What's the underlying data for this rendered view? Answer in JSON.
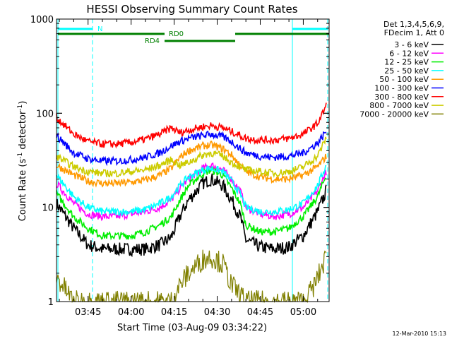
{
  "chart_data": {
    "type": "line",
    "title": "HESSI Observing Summary Count Rates",
    "xlabel": "Start Time (03-Aug-09 03:34:22)",
    "ylabel": "Count Rate (s",
    "ylabel_sup": "-1",
    "ylabel_tail": " detector",
    "ylabel_sup2": "-1",
    "ylabel_close": ")",
    "yscale": "log",
    "ylim": [
      1,
      1000
    ],
    "xlim": [
      "03:34",
      "05:09"
    ],
    "x_ticks": [
      "03:45",
      "04:00",
      "04:15",
      "04:30",
      "04:45",
      "05:00"
    ],
    "y_ticks": [
      "1",
      "10",
      "100",
      "1000"
    ],
    "timestamp": "12-Mar-2010 15:13",
    "legend_placement": "right",
    "legend_header": [
      "Det 1,3,4,5,6,9,",
      "FDecim 1, Att 0"
    ],
    "series": [
      {
        "name": "3 - 6 keV",
        "color": "#000000",
        "x": [
          "03:34",
          "03:40",
          "03:45",
          "03:50",
          "03:55",
          "04:00",
          "04:05",
          "04:10",
          "04:14",
          "04:17",
          "04:20",
          "04:25",
          "04:28",
          "04:32",
          "04:35",
          "04:38",
          "04:40",
          "04:45",
          "04:50",
          "04:55",
          "05:00",
          "05:05",
          "05:08"
        ],
        "y": [
          11,
          6,
          4,
          3.6,
          3.6,
          3.6,
          3.6,
          4,
          4.8,
          8,
          12,
          18,
          20,
          17,
          12,
          8,
          4.5,
          3.8,
          3.6,
          3.8,
          5,
          9,
          15
        ]
      },
      {
        "name": "6 - 12 keV",
        "color": "#ff00ff",
        "x": [
          "03:34",
          "03:40",
          "03:45",
          "03:50",
          "03:55",
          "04:00",
          "04:05",
          "04:10",
          "04:14",
          "04:17",
          "04:20",
          "04:25",
          "04:28",
          "04:32",
          "04:35",
          "04:38",
          "04:40",
          "04:45",
          "04:50",
          "04:55",
          "05:00",
          "05:05",
          "05:08"
        ],
        "y": [
          18,
          11,
          8.5,
          8,
          8,
          8.5,
          9,
          10,
          12,
          16,
          20,
          26,
          28,
          25,
          20,
          15,
          10,
          8.5,
          8,
          8.5,
          10,
          15,
          24
        ]
      },
      {
        "name": "12 - 25 keV",
        "color": "#00ee00",
        "x": [
          "03:34",
          "03:40",
          "03:45",
          "03:50",
          "03:55",
          "04:00",
          "04:05",
          "04:10",
          "04:14",
          "04:17",
          "04:20",
          "04:25",
          "04:28",
          "04:32",
          "04:35",
          "04:38",
          "04:40",
          "04:45",
          "04:50",
          "04:55",
          "05:00",
          "05:05",
          "05:08"
        ],
        "y": [
          14,
          8,
          6,
          5,
          5,
          5,
          5.5,
          6.5,
          8,
          12,
          17,
          23,
          25,
          22,
          16,
          11,
          6.5,
          5.5,
          5.5,
          6,
          8,
          13,
          22
        ]
      },
      {
        "name": "25 - 50 keV",
        "color": "#00ffff",
        "x": [
          "03:34",
          "03:40",
          "03:45",
          "03:50",
          "03:55",
          "04:00",
          "04:05",
          "04:10",
          "04:14",
          "04:17",
          "04:20",
          "04:25",
          "04:28",
          "04:32",
          "04:35",
          "04:38",
          "04:40",
          "04:45",
          "04:50",
          "04:55",
          "05:00",
          "05:05",
          "05:08"
        ],
        "y": [
          22,
          13,
          10,
          9,
          9,
          9,
          9.5,
          11,
          13,
          17,
          21,
          25,
          26,
          24,
          19,
          14,
          10,
          9,
          9,
          9.5,
          11,
          17,
          28
        ]
      },
      {
        "name": "50 - 100 keV",
        "color": "#ff9900",
        "x": [
          "03:34",
          "03:40",
          "03:45",
          "03:50",
          "03:55",
          "04:00",
          "04:05",
          "04:10",
          "04:14",
          "04:17",
          "04:20",
          "04:25",
          "04:28",
          "04:32",
          "04:35",
          "04:38",
          "04:40",
          "04:45",
          "04:50",
          "04:55",
          "05:00",
          "05:05",
          "05:08"
        ],
        "y": [
          28,
          22,
          19,
          18,
          18,
          18.5,
          19.5,
          22,
          26,
          34,
          40,
          45,
          46,
          42,
          36,
          28,
          24,
          21,
          20,
          20,
          22,
          27,
          35
        ]
      },
      {
        "name": "100 - 300 keV",
        "color": "#0000ff",
        "x": [
          "03:34",
          "03:40",
          "03:45",
          "03:50",
          "03:55",
          "04:00",
          "04:05",
          "04:10",
          "04:14",
          "04:17",
          "04:20",
          "04:25",
          "04:28",
          "04:32",
          "04:35",
          "04:38",
          "04:40",
          "04:45",
          "04:50",
          "04:55",
          "05:00",
          "05:05",
          "05:08"
        ],
        "y": [
          58,
          38,
          33,
          31,
          31,
          32,
          34,
          38,
          45,
          50,
          54,
          58,
          60,
          56,
          50,
          42,
          38,
          35,
          34,
          35,
          38,
          48,
          65
        ]
      },
      {
        "name": "300 - 800 keV",
        "color": "#ff0000",
        "x": [
          "03:34",
          "03:40",
          "03:45",
          "03:50",
          "03:55",
          "04:00",
          "04:05",
          "04:10",
          "04:14",
          "04:17",
          "04:20",
          "04:25",
          "04:28",
          "04:32",
          "04:35",
          "04:38",
          "04:40",
          "04:45",
          "04:50",
          "04:55",
          "05:00",
          "05:05",
          "05:08"
        ],
        "y": [
          90,
          60,
          50,
          47,
          47,
          49,
          53,
          60,
          70,
          62,
          66,
          72,
          74,
          70,
          64,
          58,
          54,
          52,
          52,
          54,
          60,
          78,
          120
        ]
      },
      {
        "name": "800 - 7000 keV",
        "color": "#cccc00",
        "x": [
          "03:34",
          "03:40",
          "03:45",
          "03:50",
          "03:55",
          "04:00",
          "04:05",
          "04:10",
          "04:14",
          "04:17",
          "04:20",
          "04:25",
          "04:28",
          "04:32",
          "04:35",
          "04:38",
          "04:40",
          "04:45",
          "04:50",
          "04:55",
          "05:00",
          "05:05",
          "05:08"
        ],
        "y": [
          35,
          27,
          24,
          23,
          23,
          24,
          25,
          28,
          32,
          28,
          30,
          36,
          38,
          35,
          30,
          27,
          25,
          24,
          23,
          24,
          27,
          35,
          55
        ]
      },
      {
        "name": "7000 - 20000 keV",
        "color": "#808000",
        "x": [
          "03:34",
          "03:36",
          "03:40",
          "03:45",
          "04:00",
          "04:10",
          "04:14",
          "04:17",
          "04:20",
          "04:25",
          "04:28",
          "04:32",
          "04:35",
          "04:40",
          "04:55",
          "05:00",
          "05:04",
          "05:08"
        ],
        "y": [
          1.8,
          1.5,
          1,
          1,
          1,
          1,
          1,
          1.5,
          2,
          2.8,
          3,
          2.5,
          1.5,
          1,
          1,
          1,
          1.5,
          3
        ]
      }
    ],
    "annotations": [
      {
        "label": "N",
        "color": "#00ffff"
      },
      {
        "label": "RD0",
        "color": "#008000"
      },
      {
        "label": "RD4",
        "color": "#008000"
      }
    ]
  }
}
